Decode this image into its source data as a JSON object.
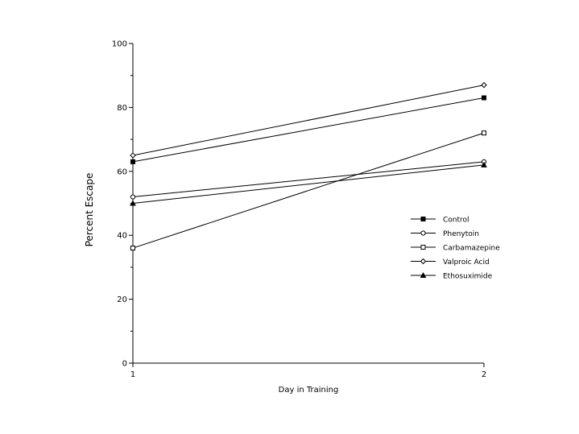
{
  "chart_data": {
    "type": "line",
    "title": "",
    "xlabel": "Day in Training",
    "ylabel": "Percent Escape",
    "x": [
      1,
      2
    ],
    "xlim": [
      1,
      2
    ],
    "ylim": [
      0,
      100
    ],
    "yticks": [
      0,
      20,
      40,
      60,
      80,
      100
    ],
    "xticks": [
      1,
      2
    ],
    "grid": false,
    "legend_position": "right",
    "series": [
      {
        "name": "Control",
        "marker": "filled-square",
        "values": [
          63,
          83
        ]
      },
      {
        "name": "Phenytoin",
        "marker": "open-circle",
        "values": [
          52,
          63
        ]
      },
      {
        "name": "Carbamazepine",
        "marker": "open-square",
        "values": [
          36,
          72
        ]
      },
      {
        "name": "Valproic Acid",
        "marker": "open-diamond",
        "values": [
          65,
          87
        ]
      },
      {
        "name": "Ethosuximide",
        "marker": "filled-triangle",
        "values": [
          50,
          62
        ]
      }
    ]
  }
}
